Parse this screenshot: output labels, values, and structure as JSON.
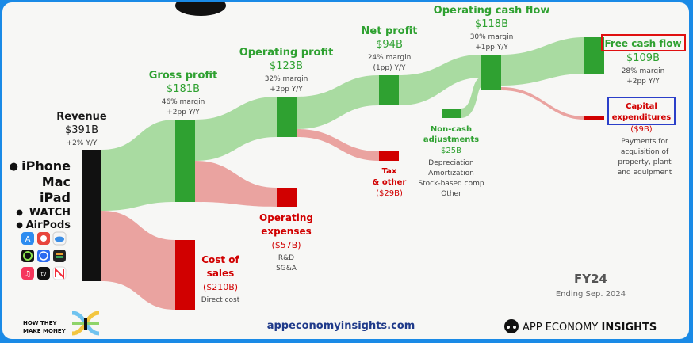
{
  "colors": {
    "profit_green": "#2fa131",
    "flow_green": "#a9dba1",
    "cost_red": "#d10000",
    "flow_red": "#eaa3a0",
    "dark_text": "#1a1a1a",
    "grey_text": "#444444",
    "brand_blue": "#1f3a8a",
    "highlight_red_box": "#e01010",
    "highlight_blue_box": "#2b3fc9"
  },
  "nodes": {
    "revenue": {
      "title": "Revenue",
      "value": "$391B",
      "note1": "+2% Y/Y"
    },
    "gross_profit": {
      "title": "Gross profit",
      "value": "$181B",
      "note1": "46% margin",
      "note2": "+2pp Y/Y"
    },
    "operating_profit": {
      "title": "Operating profit",
      "value": "$123B",
      "note1": "32% margin",
      "note2": "+2pp Y/Y"
    },
    "net_profit": {
      "title": "Net profit",
      "value": "$94B",
      "note1": "24% margin",
      "note2": "(1pp) Y/Y"
    },
    "operating_cash_flow": {
      "title": "Operating cash flow",
      "value": "$118B",
      "note1": "30% margin",
      "note2": "+1pp Y/Y"
    },
    "free_cash_flow": {
      "title": "Free cash flow",
      "value": "$109B",
      "note1": "28% margin",
      "note2": "+2pp Y/Y"
    },
    "capex": {
      "title1": "Capital",
      "title2": "expenditures",
      "value": "($9B)",
      "desc": [
        "Payments for",
        "acquisition of",
        "property, plant",
        "and equipment"
      ]
    },
    "non_cash": {
      "title1": "Non-cash",
      "title2": "adjustments",
      "value": "$25B",
      "desc": [
        "Depreciation",
        "Amortization",
        "Stock-based comp",
        "Other"
      ]
    },
    "tax": {
      "title1": "Tax",
      "title2": "& other",
      "value": "($29B)"
    },
    "opex": {
      "title1": "Operating",
      "title2": "expenses",
      "value": "($57B)",
      "desc": [
        "R&D",
        "SG&A"
      ]
    },
    "cost_of_sales": {
      "title1": "Cost of",
      "title2": "sales",
      "value": "($210B)",
      "desc": [
        "Direct cost"
      ]
    }
  },
  "segments": [
    "iPhone",
    "Mac",
    "iPad",
    "WATCH",
    "AirPods"
  ],
  "period": {
    "title": "FY24",
    "subtitle": "Ending Sep. 2024"
  },
  "footer": {
    "website": "appeconomyinsights.com",
    "htm_line1": "HOW THEY",
    "htm_line2": "MAKE MONEY",
    "brand_regular": "APP ECONOMY",
    "brand_bold": "INSIGHTS"
  },
  "icons": [
    "apple-logo-icon",
    "app-store-icon",
    "apple-arcade-icon",
    "icloud-icon",
    "fitness-icon",
    "safari-icon",
    "wallet-icon",
    "apple-music-icon",
    "apple-tv-icon",
    "apple-news-icon"
  ]
}
